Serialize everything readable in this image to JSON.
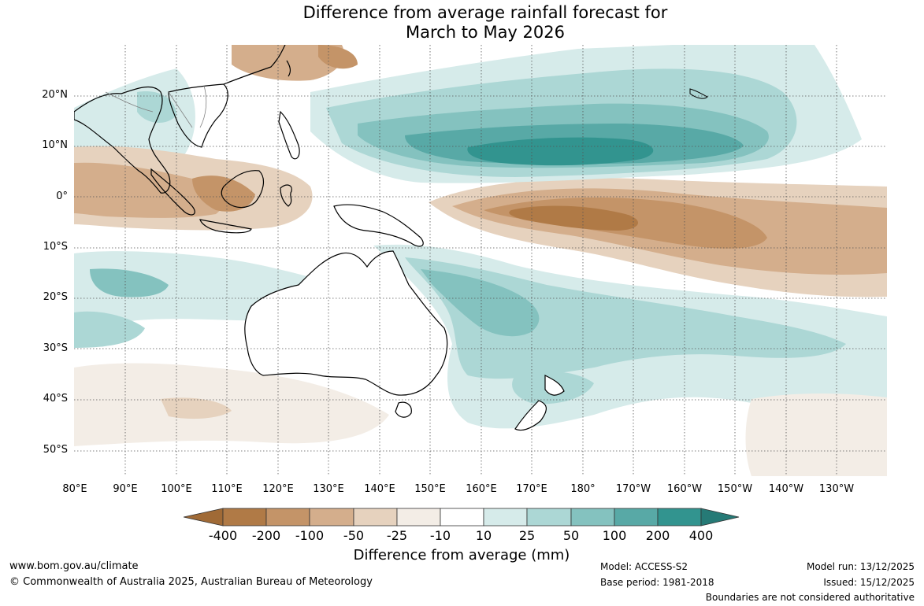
{
  "title": {
    "line1": "Difference from average rainfall forecast for",
    "line2": "March to May 2026"
  },
  "map": {
    "lat_labels": [
      "20°N",
      "10°N",
      "0°",
      "10°S",
      "20°S",
      "30°S",
      "40°S",
      "50°S"
    ],
    "lon_labels": [
      "80°E",
      "90°E",
      "100°E",
      "110°E",
      "120°E",
      "130°E",
      "140°E",
      "150°E",
      "160°E",
      "170°E",
      "180°",
      "170°W",
      "160°W",
      "150°W",
      "140°W",
      "130°W"
    ],
    "colors": {
      "ocean_bg": "#ffffff",
      "land_outline": "#000000",
      "border_outline": "#808080",
      "grid": "#555555"
    }
  },
  "colorbar": {
    "title": "Difference from average (mm)",
    "labels": [
      "-400",
      "-200",
      "-100",
      "-50",
      "-25",
      "-10",
      "10",
      "25",
      "50",
      "100",
      "200",
      "400"
    ],
    "colors": [
      "#a06a36",
      "#b07a46",
      "#c49468",
      "#d4ae8c",
      "#e6d2be",
      "#f3ede6",
      "#ffffff",
      "#d6ebea",
      "#acd7d5",
      "#84c2bf",
      "#58a9a6",
      "#32948f",
      "#267a76"
    ]
  },
  "footer": {
    "website": "www.bom.gov.au/climate",
    "copyright": "© Commonwealth of Australia 2025, Australian Bureau of Meteorology",
    "model": "Model: ACCESS-S2",
    "base_period": "Base period: 1981-2018",
    "model_run": "Model run: 13/12/2025",
    "issued": "Issued: 15/12/2025",
    "disclaimer": "Boundaries are not considered authoritative"
  }
}
